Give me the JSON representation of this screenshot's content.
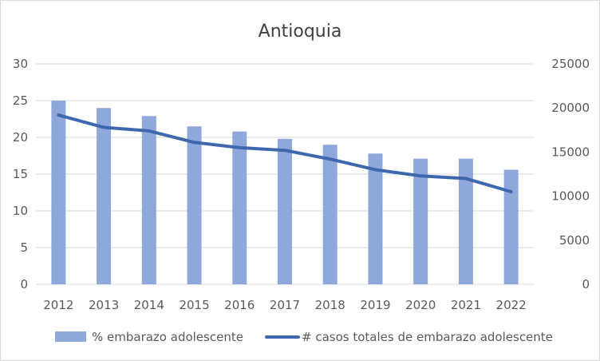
{
  "chart_data": {
    "type": "bar",
    "title": "Antioquia",
    "categories": [
      "2012",
      "2013",
      "2014",
      "2015",
      "2016",
      "2017",
      "2018",
      "2019",
      "2020",
      "2021",
      "2022"
    ],
    "series": [
      {
        "name": "% embarazo adolescente",
        "type": "bar",
        "axis": "left",
        "color": "#8fa8dc",
        "values": [
          25.0,
          24.0,
          22.9,
          21.5,
          20.8,
          19.8,
          19.0,
          17.8,
          17.1,
          17.1,
          15.6
        ]
      },
      {
        "name": "# casos totales de embarazo adolescente",
        "type": "line",
        "axis": "right",
        "color": "#3e68ae",
        "values": [
          19200,
          17800,
          17400,
          16100,
          15500,
          15200,
          14200,
          13000,
          12300,
          12000,
          10500
        ]
      }
    ],
    "y_left": {
      "min": 0,
      "max": 30,
      "step": 5,
      "ticks": [
        "0",
        "5",
        "10",
        "15",
        "20",
        "25",
        "30"
      ]
    },
    "y_right": {
      "min": 0,
      "max": 25000,
      "step": 5000,
      "ticks": [
        "0",
        "5000",
        "10000",
        "15000",
        "20000",
        "25000"
      ]
    },
    "grid": true,
    "legend": "bottom"
  }
}
